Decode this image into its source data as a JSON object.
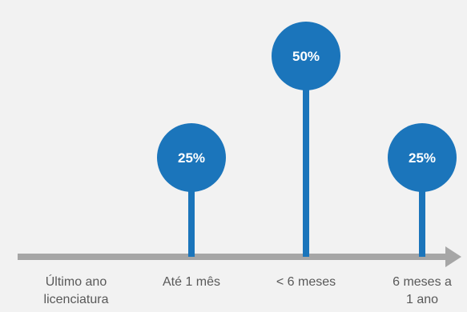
{
  "chart_data": {
    "type": "lollipop",
    "title": "",
    "xlabel": "",
    "ylabel": "",
    "categories": [
      "Último ano\nlicenciatura",
      "Até 1 mês",
      "< 6 meses",
      "6 meses a\n1 ano"
    ],
    "values": [
      0,
      25,
      50,
      25
    ],
    "value_labels": [
      "",
      "25%",
      "50%",
      "25%"
    ],
    "ylim": [
      0,
      60
    ],
    "grid": false,
    "legend": "none",
    "colors": {
      "background": "#f2f2f2",
      "marker": "#1b75bb",
      "axis": "#a6a6a6",
      "marker_text": "#ffffff",
      "tick_text": "#595959"
    }
  }
}
